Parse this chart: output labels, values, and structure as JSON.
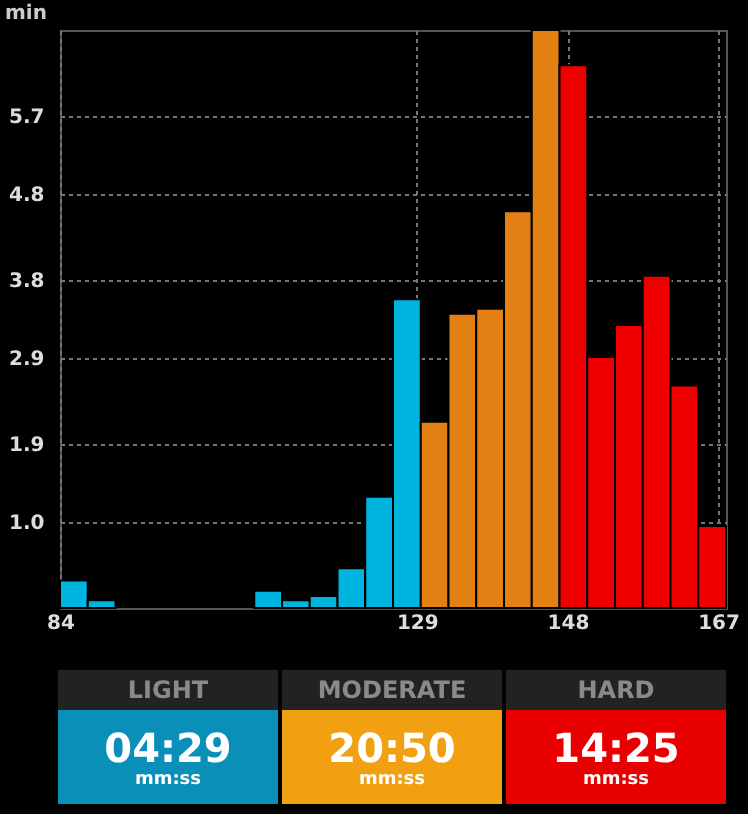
{
  "chart_data": [
    {
      "type": "histogram",
      "ylabel": "min",
      "bins": [
        84,
        87.5,
        91,
        94.5,
        98,
        101.5,
        105,
        108.5,
        112,
        115.5,
        119,
        122.5,
        126,
        129.5,
        133,
        136.5,
        140,
        143.5,
        147,
        150.5,
        154,
        157.5,
        161,
        164.5,
        168
      ],
      "values": [
        0.32,
        0.09,
        null,
        null,
        null,
        null,
        null,
        0.2,
        0.09,
        0.14,
        0.46,
        1.29,
        3.58,
        2.16,
        3.41,
        3.47,
        4.6,
        6.7,
        6.29,
        2.91,
        3.28,
        3.85,
        2.58,
        0.95
      ],
      "colors": [
        "#00b4e0",
        "#00b4e0",
        null,
        null,
        null,
        null,
        null,
        "#00b4e0",
        "#00b4e0",
        "#00b4e0",
        "#00b4e0",
        "#00b4e0",
        "#00b4e0",
        "#e28014",
        "#e28014",
        "#e28014",
        "#e28014",
        "#e28014",
        "#ee0000",
        "#ee0000",
        "#ee0000",
        "#ee0000",
        "#ee0000",
        "#ee0000"
      ],
      "xlim": [
        84,
        168
      ],
      "xticks": [
        84,
        129,
        148,
        167
      ],
      "ylim": [
        0,
        6.7
      ],
      "yticks": [
        {
          "value": 1.0,
          "label": "1.0"
        },
        1.9,
        2.9,
        3.8,
        4.8,
        5.7
      ],
      "grid": true
    },
    {
      "type": "other",
      "categories": [
        "LIGHT",
        "MODERATE",
        "HARD"
      ],
      "value_labels": [
        "04:29",
        "20:50",
        "14:25"
      ],
      "annotations": [
        "mm:ss",
        "mm:ss",
        "mm:ss"
      ]
    }
  ]
}
